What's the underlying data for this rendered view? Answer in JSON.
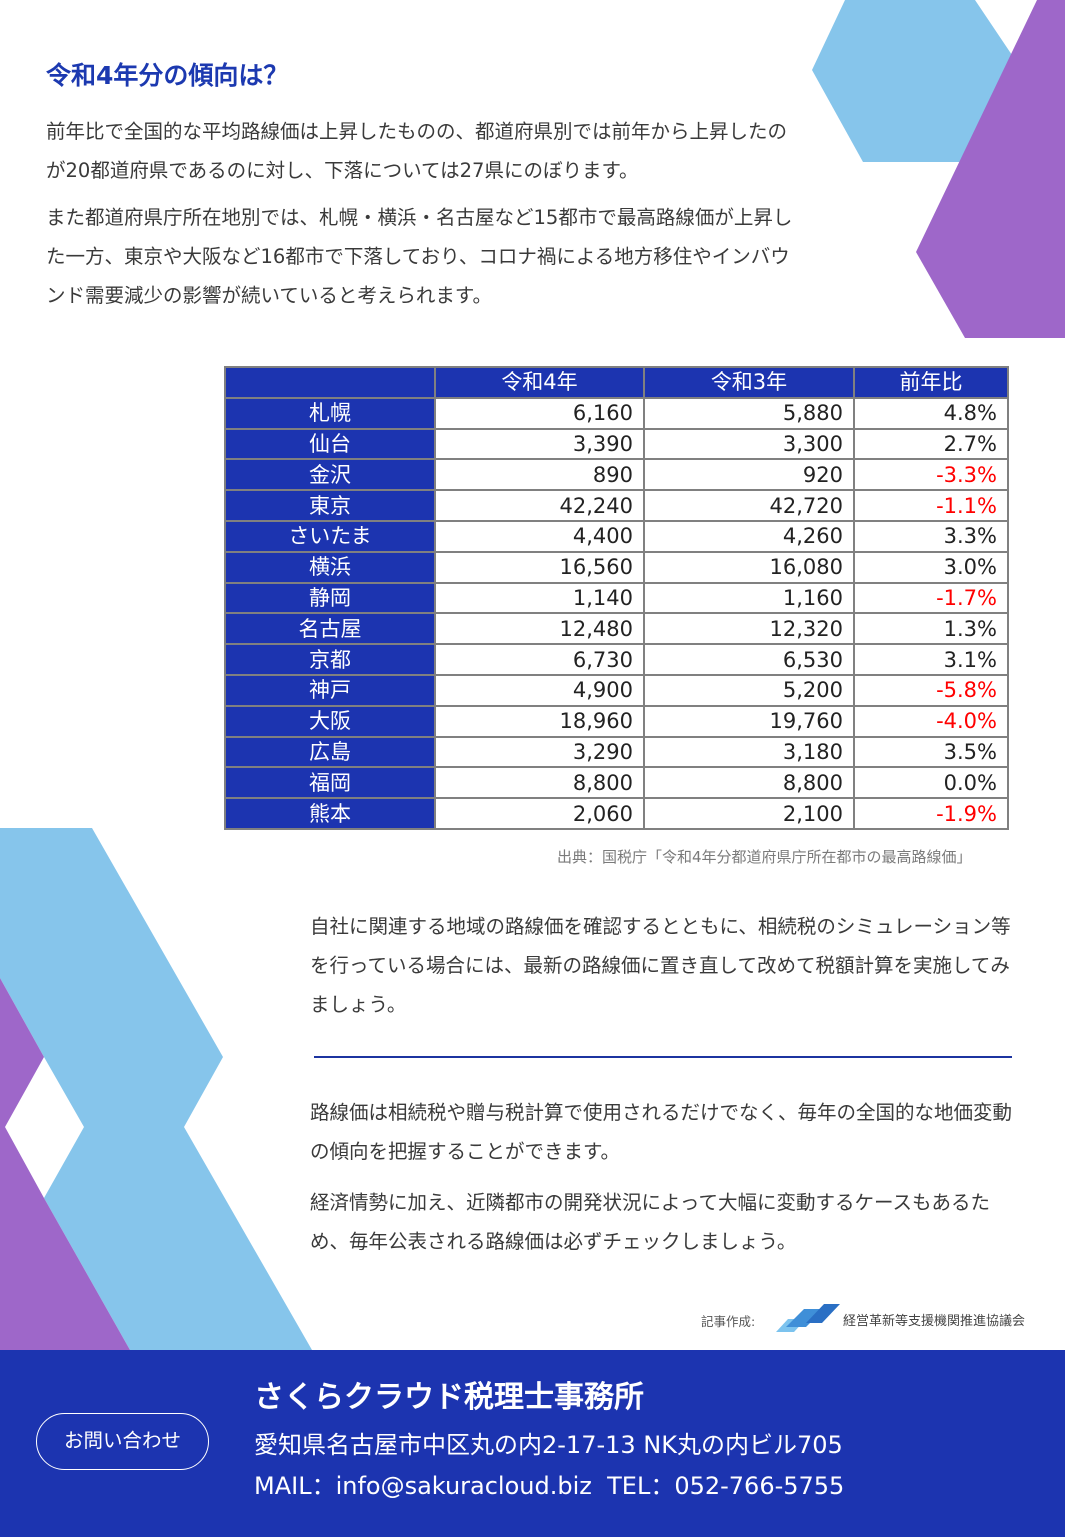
{
  "colors": {
    "accent_blue": "#1c34b0",
    "title_blue": "#1c39b0",
    "light_blue": "#86c5eb",
    "purple": "#9e67c9",
    "negative_red": "#ff0000"
  },
  "article": {
    "title": "令和4年分の傾向は？",
    "paragraphs": [
      "前年比で全国的な平均路線価は上昇したものの、都道府県別では前年から上昇したのが20都道府県であるのに対し、下落については27県にのぼります。",
      "また都道府県庁所在地別では、札幌・横浜・名古屋など15都市で最高路線価が上昇した一方、東京や大阪など16都市で下落しており、コロナ禍による地方移住やインバウンド需要減少の影響が続いていると考えられます。",
      "自社に関連する地域の路線価を確認するとともに、相続税のシミュレーション等を行っている場合には、最新の路線価に置き直して改めて税額計算を実施してみましょう。",
      "路線価は相続税や贈与税計算で使用されるだけでなく、毎年の全国的な地価変動の傾向を把握することができます。",
      "経済情勢に加え、近隣都市の開発状況によって大幅に変動するケースもあるため、毎年公表される路線価は必ずチェックしましょう。"
    ]
  },
  "table": {
    "headers": [
      "",
      "令和4年",
      "令和3年",
      "前年比"
    ],
    "rows": [
      {
        "city": "札幌",
        "r4": "6,160",
        "r3": "5,880",
        "change": "4.8%",
        "negative": false
      },
      {
        "city": "仙台",
        "r4": "3,390",
        "r3": "3,300",
        "change": "2.7%",
        "negative": false
      },
      {
        "city": "金沢",
        "r4": "890",
        "r3": "920",
        "change": "-3.3%",
        "negative": true
      },
      {
        "city": "東京",
        "r4": "42,240",
        "r3": "42,720",
        "change": "-1.1%",
        "negative": true
      },
      {
        "city": "さいたま",
        "r4": "4,400",
        "r3": "4,260",
        "change": "3.3%",
        "negative": false
      },
      {
        "city": "横浜",
        "r4": "16,560",
        "r3": "16,080",
        "change": "3.0%",
        "negative": false
      },
      {
        "city": "静岡",
        "r4": "1,140",
        "r3": "1,160",
        "change": "-1.7%",
        "negative": true
      },
      {
        "city": "名古屋",
        "r4": "12,480",
        "r3": "12,320",
        "change": "1.3%",
        "negative": false
      },
      {
        "city": "京都",
        "r4": "6,730",
        "r3": "6,530",
        "change": "3.1%",
        "negative": false
      },
      {
        "city": "神戸",
        "r4": "4,900",
        "r3": "5,200",
        "change": "-5.8%",
        "negative": true
      },
      {
        "city": "大阪",
        "r4": "18,960",
        "r3": "19,760",
        "change": "-4.0%",
        "negative": true
      },
      {
        "city": "広島",
        "r4": "3,290",
        "r3": "3,180",
        "change": "3.5%",
        "negative": false
      },
      {
        "city": "福岡",
        "r4": "8,800",
        "r3": "8,800",
        "change": "0.0%",
        "negative": false
      },
      {
        "city": "熊本",
        "r4": "2,060",
        "r3": "2,100",
        "change": "-1.9%",
        "negative": true
      }
    ],
    "source": "出典：国税庁「令和4年分都道府県庁所在都市の最高路線価」"
  },
  "credit": {
    "label": "記事作成:",
    "organization": "経営革新等支援機関推進協議会",
    "logo_icon": "stripes-logo-icon"
  },
  "footer": {
    "contact_button": "お問い合わせ",
    "office_name": "さくらクラウド税理士事務所",
    "address": "愛知県名古屋市中区丸の内2-17-13 NK丸の内ビル705",
    "contact_line": "MAIL：info@sakuracloud.biz  TEL：052-766-5755"
  }
}
